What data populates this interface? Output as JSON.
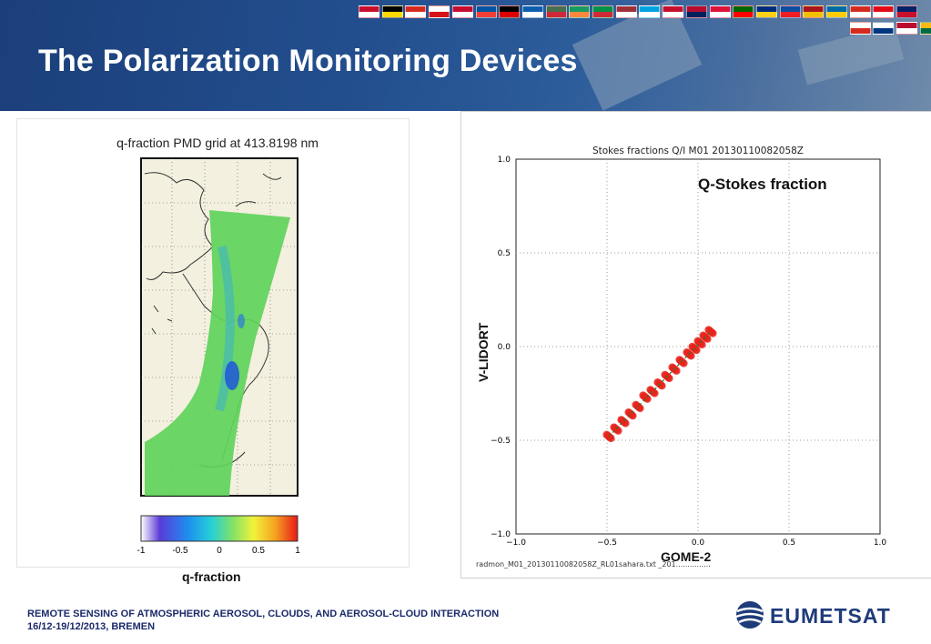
{
  "slide": {
    "title": "The Polarization Monitoring Devices"
  },
  "left_figure": {
    "title": "q-fraction PMD grid at 413.8198 nm",
    "colorbar_ticks": [
      "-1",
      "-0.5",
      "0",
      "0.5",
      "1"
    ],
    "caption": "q-fraction"
  },
  "right_figure": {
    "title": "Stokes fractions Q/I M01 20130110082058Z",
    "ylabel": "V-LIDORT",
    "xlabel": "GOME-2",
    "annotation": "Q-Stokes fraction",
    "footnote": "radmon_M01_20130110082058Z_RL01sahara.txt _201...............",
    "chart_data": {
      "type": "scatter",
      "title": "Stokes fractions Q/I M01 20130110082058Z",
      "xlabel": "GOME-2",
      "ylabel": "V-LIDORT",
      "xlim": [
        -1.0,
        1.0
      ],
      "ylim": [
        -1.0,
        1.0
      ],
      "xticks": [
        "−1.0",
        "−0.5",
        "0.0",
        "0.5",
        "1.0"
      ],
      "yticks": [
        "−1.0",
        "−0.5",
        "0.0",
        "0.5",
        "1.0"
      ],
      "grid": true,
      "series": [
        {
          "color": "#e8231c",
          "points": [
            [
              -0.49,
              -0.48
            ],
            [
              -0.45,
              -0.44
            ],
            [
              -0.41,
              -0.4
            ],
            [
              -0.37,
              -0.36
            ],
            [
              -0.33,
              -0.32
            ],
            [
              -0.29,
              -0.27
            ],
            [
              -0.25,
              -0.24
            ],
            [
              -0.21,
              -0.2
            ],
            [
              -0.17,
              -0.16
            ],
            [
              -0.13,
              -0.12
            ],
            [
              -0.09,
              -0.08
            ],
            [
              -0.05,
              -0.04
            ],
            [
              -0.02,
              -0.01
            ],
            [
              0.01,
              0.02
            ],
            [
              0.04,
              0.05
            ],
            [
              0.07,
              0.08
            ]
          ]
        }
      ],
      "fit_line_color": "#2a7a2a"
    }
  },
  "footer": {
    "line1": "REMOTE SENSING OF ATMOSPHERIC AEROSOL, CLOUDS, AND AEROSOL-CLOUD INTERACTION",
    "line2": "16/12-19/12/2013, BREMEN"
  },
  "logo": {
    "text": "EUMETSAT"
  },
  "colors": {
    "header_blue": "#234f8f",
    "map_land": "#f3f0df",
    "swath_green": "#5fd35a",
    "logo_blue": "#1e3b7a"
  }
}
